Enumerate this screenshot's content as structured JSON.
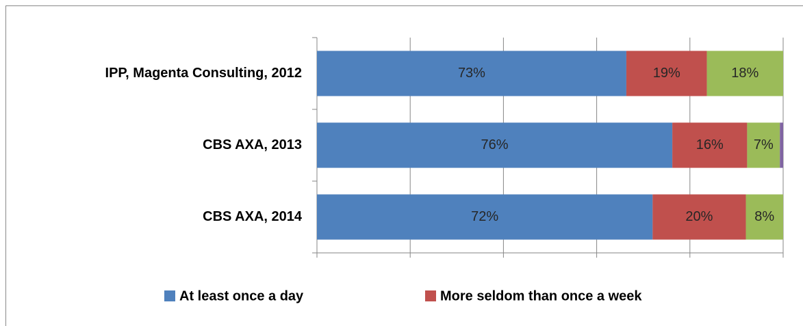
{
  "chart_data": {
    "type": "stacked_percent_bar",
    "categories": [
      "IPP, Magenta Consulting, 2012",
      "CBS AXA, 2013",
      "CBS AXA, 2014"
    ],
    "series": [
      {
        "name": "At least once a day",
        "color": "#4f81bd",
        "values": [
          73,
          76,
          72
        ],
        "value_labels": [
          "73%",
          "76%",
          "72%"
        ]
      },
      {
        "name": "More seldom than once a week",
        "color": "#c0504d",
        "values": [
          19,
          16,
          20
        ],
        "value_labels": [
          "19%",
          "16%",
          "20%"
        ]
      },
      {
        "color": "#9bbb59",
        "values": [
          18,
          7,
          8
        ],
        "value_labels": [
          "18%",
          "7%",
          "8%"
        ]
      },
      {
        "color": "#8064a2",
        "values": [
          0,
          0.7,
          0
        ]
      }
    ],
    "xlim": [
      0,
      100
    ],
    "xticks": [
      0,
      20,
      40,
      60,
      80,
      100
    ],
    "grid": true
  }
}
